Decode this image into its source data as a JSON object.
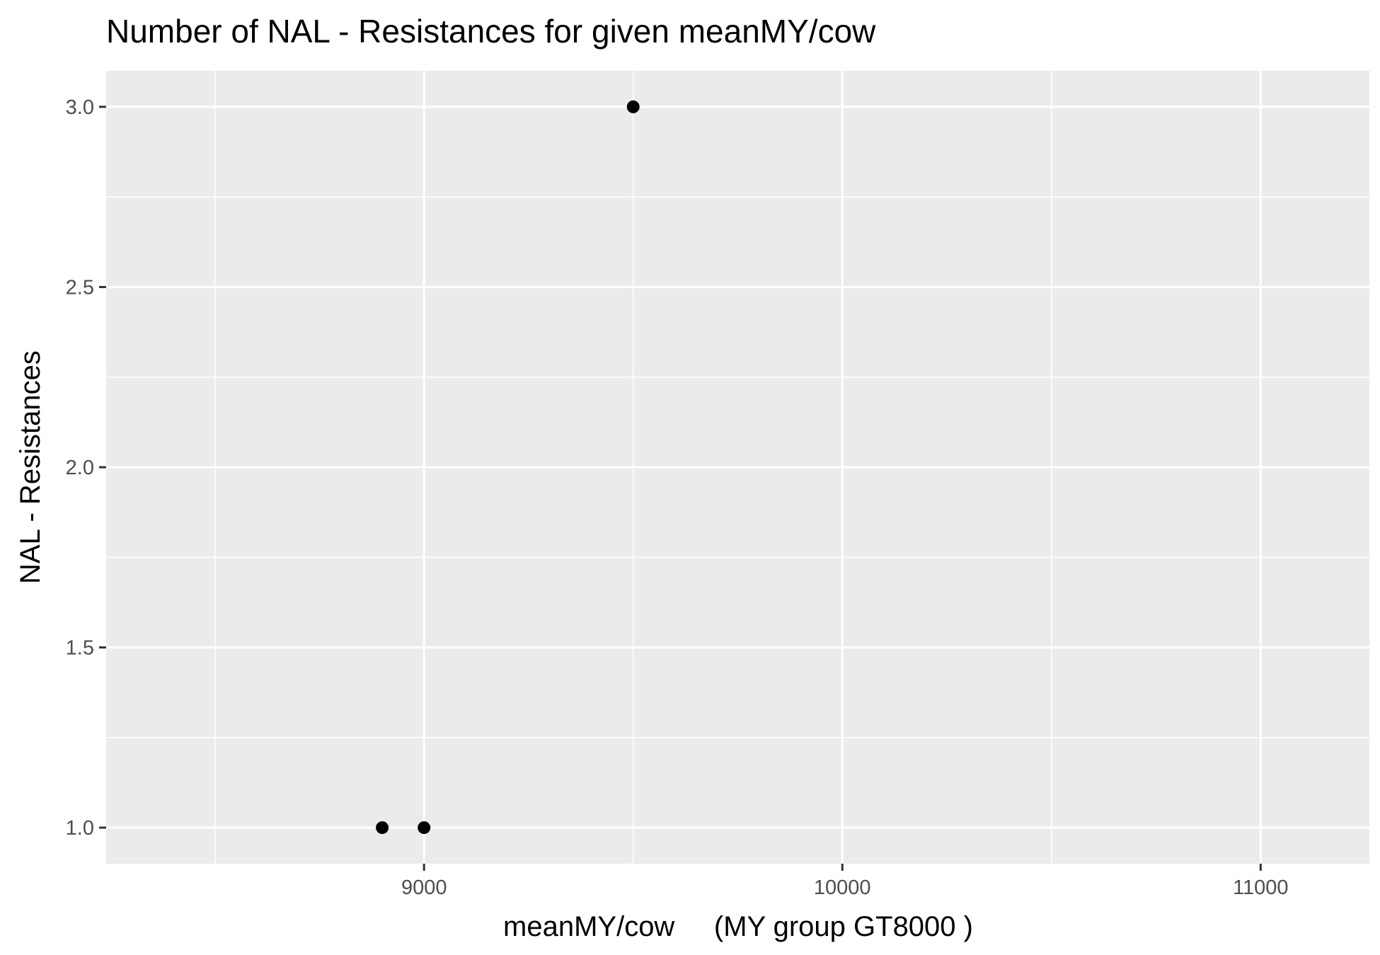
{
  "chart_data": {
    "type": "scatter",
    "title": "Number of NAL - Resistances for given meanMY/cow",
    "xlabel": "meanMY/cow     (MY group GT8000 )",
    "ylabel": "NAL - Resistances",
    "xlim": [
      8240,
      11260
    ],
    "ylim": [
      0.9,
      3.1
    ],
    "x_ticks": [
      9000,
      10000,
      11000
    ],
    "x_tick_labels": [
      "9000",
      "10000",
      "11000"
    ],
    "y_ticks": [
      1.0,
      1.5,
      2.0,
      2.5,
      3.0
    ],
    "y_tick_labels": [
      "1.0",
      "1.5",
      "2.0",
      "2.5",
      "3.0"
    ],
    "x_minor_ticks": [
      8500,
      9500,
      10500
    ],
    "y_minor_ticks": [
      1.25,
      1.75,
      2.25,
      2.75
    ],
    "grid": true,
    "points": [
      {
        "x": 8900,
        "y": 1
      },
      {
        "x": 9000,
        "y": 1
      },
      {
        "x": 9500,
        "y": 3
      }
    ],
    "colors": {
      "panel_background": "#ebebeb",
      "grid": "#ffffff",
      "point": "#000000",
      "tick_label": "#4d4d4d",
      "tick_mark": "#333333"
    }
  }
}
